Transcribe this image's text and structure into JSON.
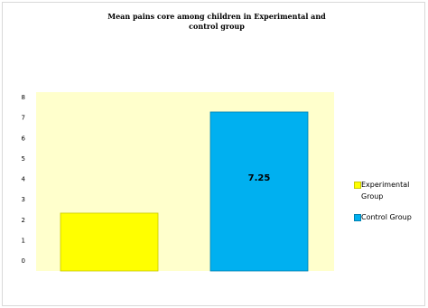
{
  "chart_data": {
    "type": "bar",
    "title": "Mean pains core among children in Experimental  and control group",
    "categories": [
      "Experimental Group",
      "Control Group"
    ],
    "series": [
      {
        "values": [
          2.3,
          7.25
        ]
      }
    ],
    "data_labels": [
      "",
      "7.25"
    ],
    "yticks": [
      "0",
      "1",
      "2",
      "3",
      "4",
      "5",
      "6",
      "7",
      "8"
    ],
    "ylim": [
      0,
      8
    ],
    "grid": false,
    "legend": {
      "position": "right",
      "entries": [
        "Experimental Group",
        "Control Group"
      ]
    },
    "colors": {
      "plot_background": "#ffffcc",
      "experimental": "#ffff00",
      "control": "#00b0f0"
    }
  }
}
